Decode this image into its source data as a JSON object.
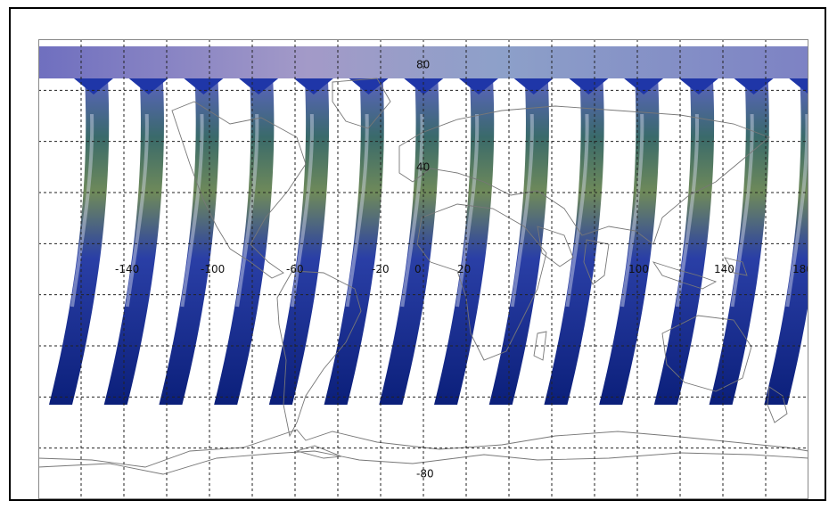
{
  "map": {
    "projection": "equirectangular",
    "lon_range": [
      -180,
      180
    ],
    "lat_range": [
      -90,
      90
    ],
    "graticule_lon_step": 20,
    "graticule_lat_step": 20,
    "lon_labels": [
      "-140",
      "-100",
      "-60",
      "-20",
      "0",
      "20",
      "100",
      "140",
      "180"
    ],
    "lat_labels": [
      "80",
      "40",
      "0",
      "-80"
    ],
    "swath_count": 14,
    "colors": {
      "swath_deep": "#0b1f7a",
      "swath_mid": "#2a43b8",
      "swath_green": "#2f6a4a",
      "swath_yellow": "#c9c45a",
      "cloud": "#d8dced",
      "polar_cap": "#8a86c4",
      "coast": "#777777",
      "grid": "#222222"
    }
  }
}
